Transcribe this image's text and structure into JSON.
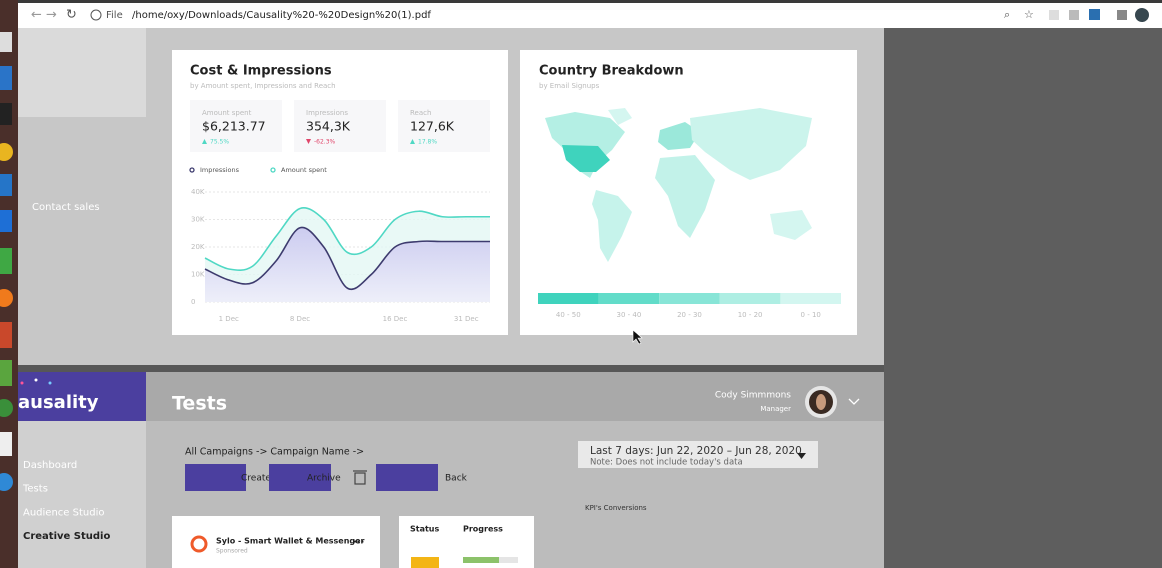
{
  "browser": {
    "scheme": "File",
    "url": "/home/oxy/Downloads/Causality%20-%20Design%20(1).pdf"
  },
  "sidebar_top": {
    "contact": "Contact sales"
  },
  "cost_card": {
    "title": "Cost & Impressions",
    "subtitle": "by Amount spent, Impressions and Reach",
    "kpis": [
      {
        "label": "Amount spent",
        "value": "$6,213.77",
        "change": "75.5%"
      },
      {
        "label": "Impressions",
        "value": "354,3K",
        "change": "-62.3%"
      },
      {
        "label": "Reach",
        "value": "127,6K",
        "change": "17.8%"
      }
    ]
  },
  "chart_data": {
    "type": "line",
    "categories": [
      null,
      "1 Dec",
      null,
      null,
      "8 Dec",
      null,
      null,
      null,
      "16 Dec",
      null,
      null,
      "31 Dec",
      null
    ],
    "series": [
      {
        "name": "Impressions",
        "color": "#3d3b6e",
        "values": [
          12000,
          8000,
          7000,
          15000,
          27000,
          20000,
          5000,
          10000,
          20000,
          22000,
          22000,
          22000,
          22000
        ]
      },
      {
        "name": "Amount spent",
        "color": "#4fd8c4",
        "values": [
          16000,
          12000,
          13000,
          24000,
          34000,
          30000,
          18000,
          20000,
          30000,
          33000,
          31000,
          31000,
          31000
        ]
      }
    ],
    "ylim": [
      0,
      40000
    ],
    "yticks": [
      0,
      {
        "value": 10000,
        "label": "10K"
      },
      {
        "value": 20000,
        "label": "20K"
      },
      {
        "value": 30000,
        "label": "30K"
      },
      {
        "value": 40000,
        "label": "40K"
      }
    ],
    "grid": true
  },
  "country_card": {
    "title": "Country Breakdown",
    "subtitle": "by Email Signups",
    "legend": [
      "40 - 50",
      "30 - 40",
      "20 - 30",
      "10 - 20",
      "0 - 10"
    ]
  },
  "app": {
    "logo": "ausality",
    "page_title": "Tests",
    "user": {
      "name": "Cody Simmmons",
      "role": "Manager"
    },
    "nav": [
      "Dashboard",
      "Tests",
      "Audience Studio",
      "Creative Studio"
    ],
    "breadcrumb": "All Campaigns -> Campaign Name ->",
    "buttons": [
      "Create",
      "Archive",
      "Back"
    ],
    "date_range": {
      "label": "Last 7 days: Jun 22, 2020 – Jun 28, 2020",
      "note": "Note: Does not include today's data"
    },
    "kpi_heading": "KPI's Conversions",
    "ad_card": {
      "title": "Sylo - Smart Wallet & Messenger",
      "meta": "Sponsored"
    },
    "table": {
      "headers": [
        "Status",
        "Progress"
      ]
    }
  }
}
